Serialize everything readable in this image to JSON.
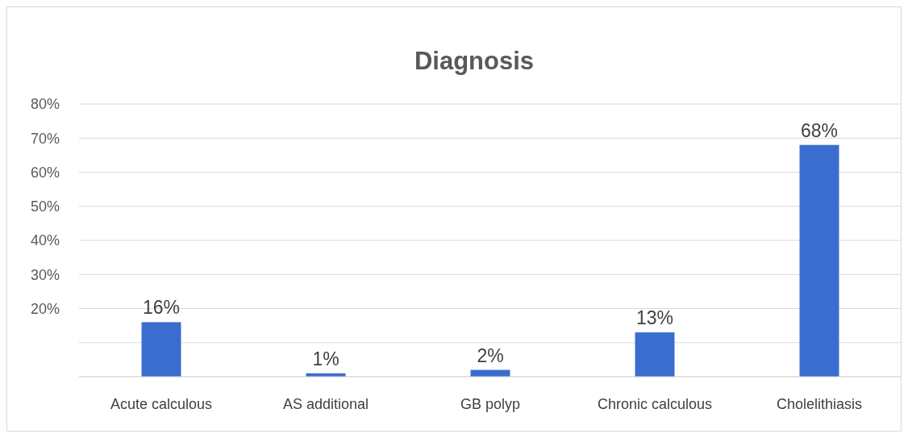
{
  "chart_data": {
    "type": "bar",
    "title": "Diagnosis",
    "categories": [
      "Acute calculous",
      "AS additional",
      "GB polyp",
      "Chronic calculous",
      "Cholelithiasis"
    ],
    "values": [
      16,
      1,
      2,
      13,
      68
    ],
    "color": "#3b6cd0",
    "value_labels": [
      "16%",
      "1%",
      "2%",
      "13%",
      "68%"
    ],
    "ylim": [
      0,
      80
    ],
    "yticks": [
      {
        "value": 0,
        "label": null
      },
      {
        "value": 10,
        "label": null
      },
      {
        "value": 20,
        "label": "20%"
      },
      {
        "value": 30,
        "label": "30%"
      },
      {
        "value": 40,
        "label": "40%"
      },
      {
        "value": 50,
        "label": "50%"
      },
      {
        "value": 60,
        "label": "60%"
      },
      {
        "value": 70,
        "label": "70%"
      },
      {
        "value": 80,
        "label": "80%"
      }
    ],
    "grid": "y"
  }
}
